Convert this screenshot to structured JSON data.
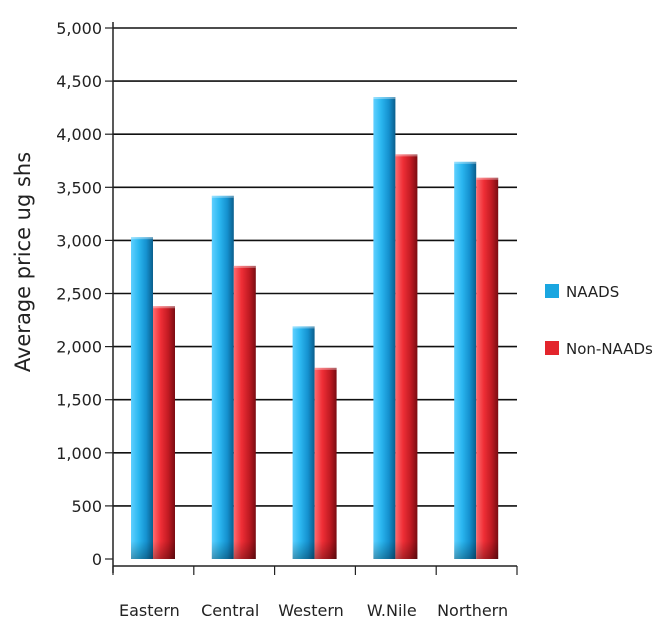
{
  "chart_data": {
    "type": "bar",
    "title": "",
    "xlabel": "",
    "ylabel": "Average price ug shs",
    "categories": [
      "Eastern",
      "Central",
      "Western",
      "W.Nile",
      "Northern"
    ],
    "series": [
      {
        "name": "NAADS",
        "values": [
          3030,
          3420,
          2190,
          4350,
          3740
        ],
        "color": "#1aa6e0"
      },
      {
        "name": "Non-NAADs",
        "values": [
          2380,
          2760,
          1800,
          3810,
          3590
        ],
        "color": "#e3252c"
      }
    ],
    "ylim": [
      0,
      5000
    ],
    "yticks": [
      "0",
      "500",
      "1,000",
      "1,500",
      "2,000",
      "2,500",
      "3,000",
      "3,500",
      "4,000",
      "4,500",
      "5,000"
    ],
    "ytick_values": [
      0,
      500,
      1000,
      1500,
      2000,
      2500,
      3000,
      3500,
      4000,
      4500,
      5000
    ],
    "grid": true,
    "legend_position": "right"
  }
}
